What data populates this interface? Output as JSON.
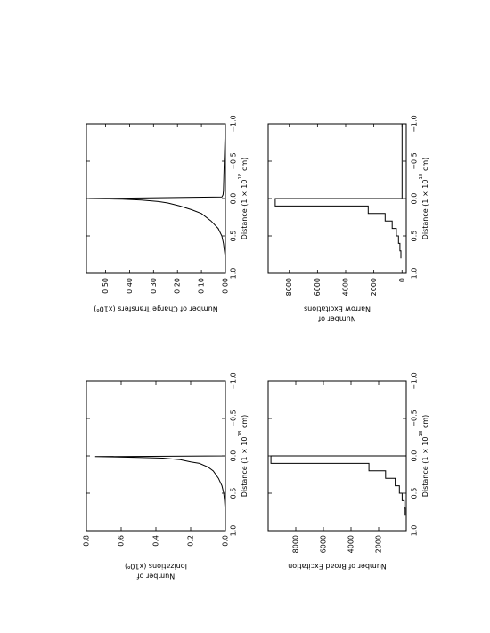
{
  "chart_data": [
    {
      "id": "ionizations",
      "type": "line",
      "xlabel": {
        "pre": "Distance (1 × 10",
        "sup": "18",
        "post": " cm)"
      },
      "ylabel_lines": [
        "Number of",
        "Ionizations (x10⁶)"
      ],
      "xlim": [
        -1.0,
        1.0
      ],
      "ylim": [
        0.0,
        0.8
      ],
      "xticks": [
        -1.0,
        -0.5,
        0.0,
        0.5,
        1.0
      ],
      "xtick_labels": [
        "−1.0",
        "−0.5",
        "0.0",
        "0.5",
        "1.0"
      ],
      "yticks": [
        0.0,
        0.2,
        0.4,
        0.6,
        0.8
      ],
      "ytick_labels": [
        "0.0",
        "0.2",
        "0.4",
        "0.6",
        "0.8"
      ],
      "x": [
        -1.0,
        -0.5,
        0.0,
        0.01,
        0.02,
        0.03,
        0.05,
        0.08,
        0.1,
        0.15,
        0.2,
        0.3,
        0.4,
        0.5,
        0.6,
        0.7,
        0.8
      ],
      "y": [
        0.0,
        0.0,
        0.0,
        0.75,
        0.5,
        0.36,
        0.26,
        0.2,
        0.15,
        0.1,
        0.07,
        0.04,
        0.02,
        0.01,
        0.005,
        0.002,
        0.0
      ]
    },
    {
      "id": "charge-transfers",
      "type": "line",
      "xlabel": {
        "pre": "Distance (1 × 10",
        "sup": "18",
        "post": " cm)"
      },
      "ylabel_lines": [
        "Number of Charge Transfers (x10⁶)"
      ],
      "xlim": [
        -1.0,
        1.0
      ],
      "ylim": [
        0.0,
        0.58
      ],
      "xticks": [
        -1.0,
        -0.5,
        0.0,
        0.5,
        1.0
      ],
      "xtick_labels": [
        "−1.0",
        "−0.5",
        "0.0",
        "0.5",
        "1.0"
      ],
      "yticks": [
        0.0,
        0.1,
        0.2,
        0.3,
        0.4,
        0.5
      ],
      "ytick_labels": [
        "0.00",
        "0.10",
        "0.20",
        "0.30",
        "0.40",
        "0.50"
      ],
      "x": [
        -1.0,
        -0.5,
        -0.1,
        -0.05,
        -0.02,
        0.0,
        0.01,
        0.02,
        0.04,
        0.06,
        0.1,
        0.15,
        0.2,
        0.3,
        0.4,
        0.5,
        0.6,
        0.7,
        0.8
      ],
      "y": [
        0.0,
        0.005,
        0.008,
        0.01,
        0.015,
        0.57,
        0.43,
        0.35,
        0.28,
        0.24,
        0.19,
        0.14,
        0.1,
        0.06,
        0.03,
        0.015,
        0.008,
        0.004,
        0.0
      ]
    },
    {
      "id": "broad-excitation",
      "type": "step",
      "xlabel": {
        "pre": "Distance (1 × 10",
        "sup": "18",
        "post": " cm)"
      },
      "ylabel_lines": [
        "Number of Broad Excitation"
      ],
      "xlim": [
        -1.0,
        1.0
      ],
      "ylim": [
        0,
        10000
      ],
      "xticks": [
        -1.0,
        -0.5,
        0.0,
        0.5,
        1.0
      ],
      "xtick_labels": [
        "−1.0",
        "−0.5",
        "0.0",
        "0.5",
        "1.0"
      ],
      "yticks": [
        2000,
        4000,
        6000,
        8000
      ],
      "ytick_labels": [
        "2000",
        "4000",
        "6000",
        "8000"
      ],
      "x": [
        -1.0,
        0.0,
        0.0,
        0.1,
        0.1,
        0.2,
        0.2,
        0.3,
        0.3,
        0.4,
        0.4,
        0.5,
        0.5,
        0.6,
        0.6,
        0.7,
        0.7,
        0.8
      ],
      "y": [
        0,
        0,
        9800,
        9800,
        2700,
        2700,
        1500,
        1500,
        800,
        800,
        500,
        500,
        300,
        300,
        150,
        150,
        80,
        80
      ]
    },
    {
      "id": "narrow-excitations",
      "type": "step",
      "xlabel": {
        "pre": "Distance (1 × 10",
        "sup": "18",
        "post": " cm)"
      },
      "ylabel_lines": [
        "Number of",
        "Narrow Excitations"
      ],
      "xlim": [
        -1.0,
        1.0
      ],
      "ylim": [
        -300,
        9500
      ],
      "xticks": [
        -1.0,
        -0.5,
        0.0,
        0.5,
        1.0
      ],
      "xtick_labels": [
        "−1.0",
        "−0.5",
        "0.0",
        "0.5",
        "1.0"
      ],
      "yticks": [
        0,
        2000,
        4000,
        6000,
        8000
      ],
      "ytick_labels": [
        "0",
        "2000",
        "4000",
        "6000",
        "8000"
      ],
      "x": [
        -1.0,
        0.0,
        0.0,
        0.1,
        0.1,
        0.2,
        0.2,
        0.3,
        0.3,
        0.4,
        0.4,
        0.5,
        0.5,
        0.6,
        0.6,
        0.7,
        0.7,
        0.8
      ],
      "y": [
        0,
        0,
        9000,
        9000,
        2400,
        2400,
        1200,
        1200,
        700,
        700,
        400,
        400,
        250,
        250,
        150,
        150,
        80,
        80
      ]
    }
  ]
}
